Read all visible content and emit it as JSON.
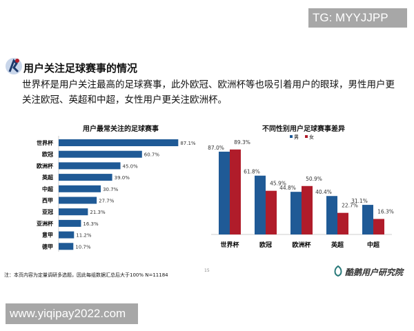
{
  "watermark_top": "TG: MYYJJPP",
  "watermark_bottom": "www.yiqipay2022.com",
  "header": {
    "title": "用户关注足球赛事的情况",
    "description": "世界杯是用户关注最高的足球赛事，此外欧冠、欧洲杯等也吸引着用户的眼球，男性用户更关注欧冠、英超和中超，女性用户更关注欧洲杯。"
  },
  "footer": {
    "note": "注：本页内容为定量调研多选题，因此每组数据汇总后大于100%  N=11184",
    "page_number": "15",
    "brand": "酷鹅用户研究院"
  },
  "colors": {
    "male": "#1f5a96",
    "female": "#b01c2a",
    "bar": "#1f5a96"
  },
  "chart_data": [
    {
      "type": "bar",
      "orientation": "horizontal",
      "title": "用户最常关注的足球赛事",
      "categories": [
        "世界杯",
        "欧冠",
        "欧洲杯",
        "英超",
        "中超",
        "西甲",
        "亚冠",
        "亚洲杯",
        "意甲",
        "德甲"
      ],
      "values": [
        87.1,
        60.7,
        45.0,
        39.0,
        30.7,
        27.7,
        21.3,
        16.3,
        11.2,
        10.7
      ],
      "labels": [
        "87.1%",
        "60.7%",
        "45.0%",
        "39.0%",
        "30.7%",
        "27.7%",
        "21.3%",
        "16.3%",
        "11.2%",
        "10.7%"
      ]
    },
    {
      "type": "bar",
      "title": "不同性别用户足球赛事差异",
      "legend": "top",
      "categories": [
        "世界杯",
        "欧冠",
        "欧洲杯",
        "英超",
        "中超"
      ],
      "series": [
        {
          "name": "男",
          "values": [
            87.0,
            61.8,
            44.8,
            40.4,
            31.1
          ],
          "labels": [
            "87.0%",
            "61.8%",
            "44.8%",
            "40.4%",
            "31.1%"
          ]
        },
        {
          "name": "女",
          "values": [
            89.3,
            45.9,
            50.9,
            22.7,
            16.3
          ],
          "labels": [
            "89.3%",
            "45.9%",
            "50.9%",
            "22.7%",
            "16.3%"
          ]
        }
      ]
    }
  ]
}
